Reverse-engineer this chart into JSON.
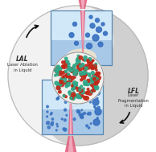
{
  "fig_width": 1.94,
  "fig_height": 1.89,
  "dpi": 100,
  "background_color": "#ffffff",
  "box_blue_light": "#c8e0f4",
  "box_blue_mid": "#a8c8e8",
  "box_blue_dark": "#88b0d0",
  "plasma_glow": "#f0d8b8",
  "laser_pink": "#e05878",
  "laser_light": "#f090a8",
  "laser_core": "#f8c0d0",
  "particle_blue": "#3870c0",
  "particle_blue_dark": "#2858a0",
  "nanoparticle_red": "#c02818",
  "nanoparticle_teal": "#30a888",
  "label_color": "#303030",
  "arrow_color": "#101010",
  "lal_label": "LAL",
  "lal_sublabel": "Laser Ablation\nin Liquid",
  "lfl_label": "LFL",
  "lfl_sublabel": "Laser\nFragmentation\nin Liquid"
}
